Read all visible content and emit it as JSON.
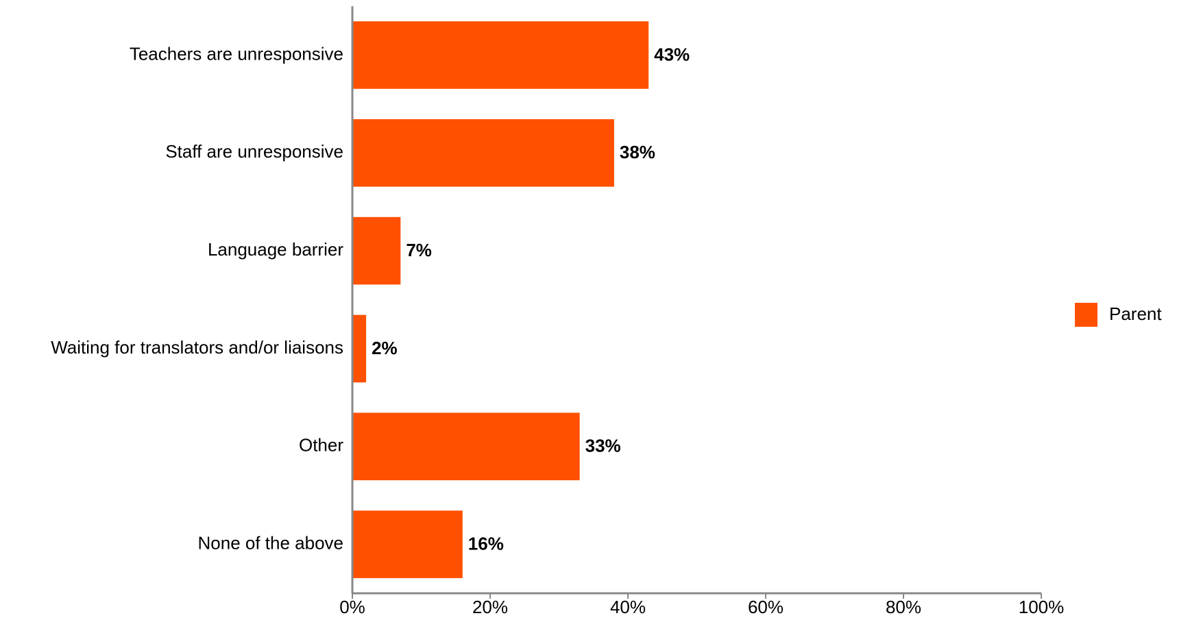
{
  "chart_data": {
    "type": "barh",
    "categories": [
      "Teachers are unresponsive",
      "Staff are unresponsive",
      "Language barrier",
      "Waiting for translators and/or liaisons",
      "Other",
      "None of the above"
    ],
    "series": [
      {
        "name": "Parent",
        "color": "#ff5000",
        "values": [
          43,
          38,
          7,
          2,
          33,
          16
        ],
        "value_labels": [
          "43%",
          "38%",
          "7%",
          "2%",
          "33%",
          "16%"
        ]
      }
    ],
    "xlim": [
      0,
      100
    ],
    "xticks": [
      {
        "value": 0,
        "label": "0%"
      },
      {
        "value": 20,
        "label": "20%"
      },
      {
        "value": 40,
        "label": "40%"
      },
      {
        "value": 60,
        "label": "60%"
      },
      {
        "value": 80,
        "label": "80%"
      },
      {
        "value": 100,
        "label": "100%"
      }
    ],
    "legend": "right"
  }
}
